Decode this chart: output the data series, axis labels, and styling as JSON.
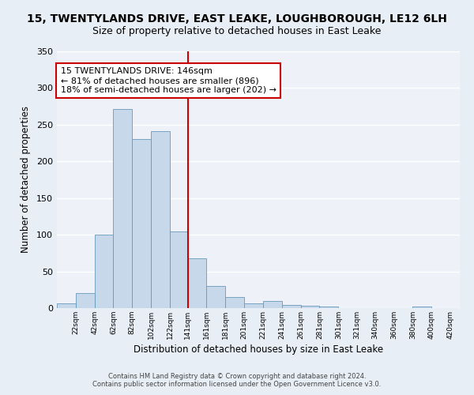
{
  "title": "15, TWENTYLANDS DRIVE, EAST LEAKE, LOUGHBOROUGH, LE12 6LH",
  "subtitle": "Size of property relative to detached houses in East Leake",
  "xlabel": "Distribution of detached houses by size in East Leake",
  "ylabel": "Number of detached properties",
  "bar_color": "#c8d8eb",
  "bar_edge_color": "#6699bb",
  "bar_left_edges": [
    2,
    22,
    42,
    62,
    82,
    102,
    122,
    141,
    161,
    181,
    201,
    221,
    241,
    261,
    281,
    301,
    321,
    340,
    360,
    380,
    400
  ],
  "bar_heights": [
    7,
    20,
    100,
    271,
    231,
    241,
    105,
    68,
    30,
    15,
    7,
    10,
    4,
    3,
    2,
    0,
    0,
    0,
    0,
    2
  ],
  "bar_widths": [
    20,
    20,
    20,
    20,
    20,
    20,
    19,
    20,
    20,
    20,
    20,
    20,
    20,
    20,
    20,
    20,
    19,
    20,
    20,
    20
  ],
  "xtick_positions": [
    22,
    42,
    62,
    82,
    102,
    122,
    141,
    161,
    181,
    201,
    221,
    241,
    261,
    281,
    301,
    321,
    340,
    360,
    380,
    400,
    420
  ],
  "xtick_labels": [
    "22sqm",
    "42sqm",
    "62sqm",
    "82sqm",
    "102sqm",
    "122sqm",
    "141sqm",
    "161sqm",
    "181sqm",
    "201sqm",
    "221sqm",
    "241sqm",
    "261sqm",
    "281sqm",
    "301sqm",
    "321sqm",
    "340sqm",
    "360sqm",
    "380sqm",
    "400sqm",
    "420sqm"
  ],
  "ylim": [
    0,
    350
  ],
  "xlim": [
    2,
    430
  ],
  "vline_x": 141,
  "vline_color": "#cc0000",
  "annotation_text": "15 TWENTYLANDS DRIVE: 146sqm\n← 81% of detached houses are smaller (896)\n18% of semi-detached houses are larger (202) →",
  "annotation_box_color": "#ffffff",
  "annotation_box_edge": "#cc0000",
  "footer1": "Contains HM Land Registry data © Crown copyright and database right 2024.",
  "footer2": "Contains public sector information licensed under the Open Government Licence v3.0.",
  "bg_color": "#e8eef5",
  "plot_bg_color": "#eef2f8",
  "grid_color": "#ffffff",
  "title_fontsize": 10,
  "subtitle_fontsize": 9
}
